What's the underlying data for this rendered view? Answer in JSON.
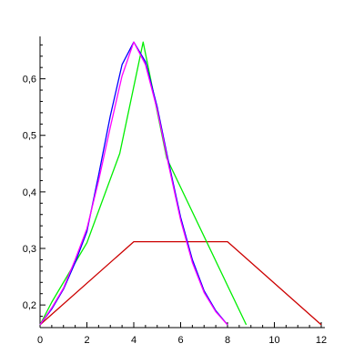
{
  "chart_data": {
    "type": "line",
    "title": "",
    "xlabel": "",
    "ylabel": "",
    "xlim": [
      0,
      12
    ],
    "ylim": [
      0.16,
      0.675
    ],
    "grid": false,
    "x_ticks": [
      {
        "value": 0,
        "label": "0"
      },
      {
        "value": 2,
        "label": "2"
      },
      {
        "value": 4,
        "label": "4"
      },
      {
        "value": 6,
        "label": "6"
      },
      {
        "value": 8,
        "label": "8"
      },
      {
        "value": 10,
        "label": "10"
      },
      {
        "value": 12,
        "label": "12"
      }
    ],
    "y_ticks": [
      {
        "value": 0.2,
        "label": "0,2"
      },
      {
        "value": 0.3,
        "label": "0,3"
      },
      {
        "value": 0.4,
        "label": "0,4"
      },
      {
        "value": 0.5,
        "label": "0,5"
      },
      {
        "value": 0.6,
        "label": "0,6"
      }
    ],
    "series": [
      {
        "color": "#cc0000",
        "points": [
          [
            0,
            0.165
          ],
          [
            4,
            0.312
          ],
          [
            8,
            0.312
          ],
          [
            12,
            0.165
          ]
        ]
      },
      {
        "color": "#00ee00",
        "points": [
          [
            0,
            0.165
          ],
          [
            0.5,
            0.205
          ],
          [
            2,
            0.31
          ],
          [
            3.4,
            0.468
          ],
          [
            4.4,
            0.665
          ],
          [
            5.4,
            0.46
          ],
          [
            8.8,
            0.165
          ]
        ]
      },
      {
        "color": "#0000ff",
        "points": [
          [
            0,
            0.165
          ],
          [
            0.5,
            0.193
          ],
          [
            1,
            0.228
          ],
          [
            1.5,
            0.275
          ],
          [
            2,
            0.33
          ],
          [
            2.5,
            0.43
          ],
          [
            3,
            0.535
          ],
          [
            3.5,
            0.625
          ],
          [
            4,
            0.665
          ],
          [
            4.5,
            0.63
          ],
          [
            5,
            0.55
          ],
          [
            5.5,
            0.45
          ],
          [
            6,
            0.355
          ],
          [
            6.5,
            0.28
          ],
          [
            7,
            0.225
          ],
          [
            7.5,
            0.19
          ],
          [
            8,
            0.165
          ]
        ]
      },
      {
        "color": "#ff00ff",
        "points": [
          [
            0,
            0.165
          ],
          [
            0.5,
            0.195
          ],
          [
            1,
            0.23
          ],
          [
            1.5,
            0.28
          ],
          [
            2,
            0.335
          ],
          [
            2.5,
            0.42
          ],
          [
            3,
            0.515
          ],
          [
            3.5,
            0.605
          ],
          [
            4,
            0.665
          ],
          [
            4.5,
            0.625
          ],
          [
            5,
            0.545
          ],
          [
            5.5,
            0.445
          ],
          [
            6,
            0.35
          ],
          [
            6.5,
            0.275
          ],
          [
            7,
            0.222
          ],
          [
            7.5,
            0.188
          ],
          [
            8,
            0.165
          ]
        ]
      }
    ]
  }
}
